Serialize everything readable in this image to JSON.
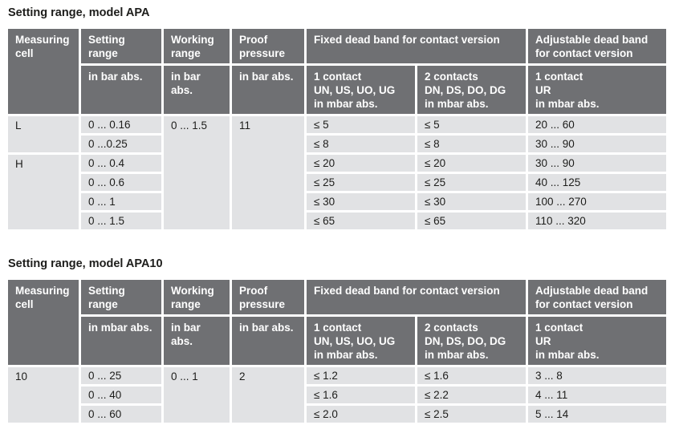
{
  "colors": {
    "header_bg": "#6f7073",
    "row_bg": "#e1e2e4",
    "header_text": "#ffffff",
    "body_text": "#1d1d1b",
    "gutter": "#ffffff"
  },
  "apa": {
    "title": "Setting range, model APA",
    "header": {
      "measuring_cell": "Measuring\ncell",
      "setting_range": "Setting\nrange",
      "working_range": "Working\nrange",
      "proof_pressure": "Proof\npressure",
      "fixed_dead_band": "Fixed dead band for contact version",
      "adjustable_dead_band": "Adjustable dead band\nfor contact version",
      "setting_unit": "in bar abs.",
      "working_unit": "in bar abs.",
      "proof_unit": "in bar abs.",
      "contact_1": "1 contact\nUN, US, UO, UG\nin mbar abs.",
      "contact_2": "2 contacts\nDN, DS, DO, DG\nin mbar abs.",
      "contact_ur": "1 contact\nUR\nin mbar abs."
    },
    "body": {
      "measuring_l": "L",
      "measuring_h": "H",
      "working": "0 ... 1.5",
      "proof": "11",
      "rows": [
        {
          "setting": "0 ... 0.16",
          "c1": "≤ 5",
          "c2": "≤ 5",
          "ur": "20 ... 60"
        },
        {
          "setting": "0 ...0.25",
          "c1": "≤ 8",
          "c2": "≤ 8",
          "ur": "30 ... 90"
        },
        {
          "setting": "0 ... 0.4",
          "c1": "≤ 20",
          "c2": "≤ 20",
          "ur": "30 ... 90"
        },
        {
          "setting": "0 ... 0.6",
          "c1": "≤ 25",
          "c2": "≤ 25",
          "ur": "40 ... 125"
        },
        {
          "setting": "0 ... 1",
          "c1": "≤ 30",
          "c2": "≤ 30",
          "ur": "100 ... 270"
        },
        {
          "setting": "0 ... 1.5",
          "c1": "≤ 65",
          "c2": "≤ 65",
          "ur": "110 ... 320"
        }
      ]
    }
  },
  "apa10": {
    "title": "Setting range, model APA10",
    "header": {
      "measuring_cell": "Measuring\ncell",
      "setting_range": "Setting\nrange",
      "working_range": "Working\nrange",
      "proof_pressure": "Proof\npressure",
      "fixed_dead_band": "Fixed dead band for contact version",
      "adjustable_dead_band": "Adjustable dead band\nfor contact version",
      "setting_unit": "in mbar abs.",
      "working_unit": "in bar abs.",
      "proof_unit": "in bar abs.",
      "contact_1": "1 contact\nUN, US, UO, UG\nin mbar abs.",
      "contact_2": "2 contacts\nDN, DS, DO, DG\nin mbar abs.",
      "contact_ur": "1 contact\nUR\nin mbar abs."
    },
    "body": {
      "measuring": "10",
      "working": "0 ... 1",
      "proof": "2",
      "rows": [
        {
          "setting": "0 ... 25",
          "c1": "≤ 1.2",
          "c2": "≤ 1.6",
          "ur": "3 ... 8"
        },
        {
          "setting": "0 ... 40",
          "c1": "≤ 1.6",
          "c2": "≤ 2.2",
          "ur": "4 ... 11"
        },
        {
          "setting": "0 ... 60",
          "c1": "≤ 2.0",
          "c2": "≤ 2.5",
          "ur": "5 ... 14"
        }
      ]
    }
  }
}
